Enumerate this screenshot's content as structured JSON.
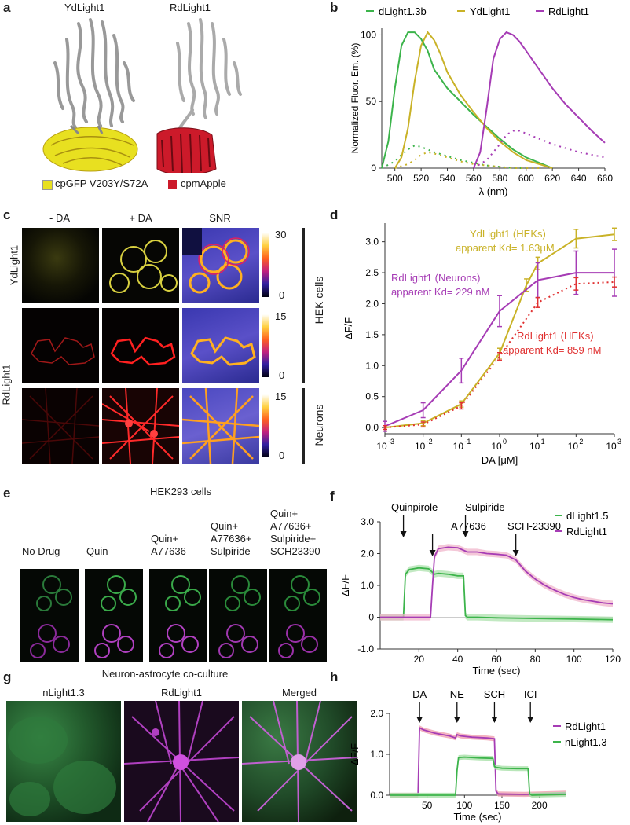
{
  "panels": {
    "a": {
      "letter": "a",
      "left_title": "YdLight1",
      "right_title": "RdLight1",
      "legend_left": "cpGFP V203Y/S72A",
      "legend_right": "cpmApple",
      "colors": {
        "yellow": "#e8e020",
        "red": "#cc1a2a"
      }
    },
    "b": {
      "letter": "b",
      "legend": [
        "dLight1.3b",
        "YdLight1",
        "RdLight1"
      ],
      "ylabel": "Normalized Fluor. Em. (%)",
      "xlabel": "λ (nm)",
      "xticks": [
        "500",
        "520",
        "540",
        "560",
        "580",
        "600",
        "620",
        "640",
        "660"
      ],
      "yticks": [
        "0",
        "50",
        "100"
      ]
    },
    "c": {
      "letter": "c",
      "col_titles": [
        "- DA",
        "+ DA",
        "SNR"
      ],
      "row_label_top": "YdLight1",
      "row_label_bottom": "RdLight1",
      "side_labels": [
        "HEK cells",
        "Neurons"
      ],
      "scale_top": [
        "30",
        "0"
      ],
      "scale_mid": [
        "15",
        "0"
      ],
      "scale_bot": [
        "15",
        "0"
      ]
    },
    "d": {
      "letter": "d",
      "ann_yd1": "YdLight1 (HEKs)",
      "ann_yd2": "apparent Kd= 1.63μM",
      "ann_rn1": "RdLight1 (Neurons)",
      "ann_rn2": "apparent Kd= 229 nM",
      "ann_rh1": "RdLight1 (HEKs)",
      "ann_rh2": "apparent Kd= 859 nM",
      "ylabel": "ΔF/F",
      "xlabel": "DA [μM]",
      "yticks": [
        "0.0",
        "0.5",
        "1.0",
        "1.5",
        "2.0",
        "2.5",
        "3.0"
      ],
      "xticks": [
        "-3",
        "-2",
        "-1",
        "0",
        "1",
        "2",
        "3"
      ]
    },
    "e": {
      "letter": "e",
      "title": "HEK293 cells",
      "cols": [
        [
          "No Drug"
        ],
        [
          "Quin"
        ],
        [
          "Quin+",
          "A77636"
        ],
        [
          "Quin+",
          "A77636+",
          "Sulpiride"
        ],
        [
          "Quin+",
          "A77636+",
          "Sulpiride+",
          "SCH23390"
        ]
      ]
    },
    "f": {
      "letter": "f",
      "drugs": [
        "Quinpirole",
        "A77636",
        "Sulpiride",
        "SCH-23390"
      ],
      "legend": [
        "dLight1.5",
        "RdLight1"
      ],
      "ylabel": "ΔF/F",
      "xlabel": "Time (sec)",
      "yticks": [
        "-1.0",
        "0",
        "1.0",
        "2.0",
        "3.0"
      ],
      "xticks": [
        "20",
        "40",
        "60",
        "80",
        "100",
        "120"
      ]
    },
    "g": {
      "letter": "g",
      "title": "Neuron-astrocyte co-culture",
      "cols": [
        "nLight1.3",
        "RdLight1",
        "Merged"
      ]
    },
    "h": {
      "letter": "h",
      "drugs": [
        "DA",
        "NE",
        "SCH",
        "ICI"
      ],
      "legend": [
        "RdLight1",
        "nLight1.3"
      ],
      "ylabel": "ΔF/F",
      "xlabel": "Time (sec)",
      "yticks": [
        "0.0",
        "1.0",
        "2.0"
      ],
      "xticks": [
        "50",
        "100",
        "150",
        "200"
      ]
    }
  },
  "chart_data": [
    {
      "type": "line",
      "panel": "b",
      "xlabel": "λ (nm)",
      "ylabel": "Normalized Fluor. Em. (%)",
      "xlim": [
        490,
        660
      ],
      "ylim": [
        0,
        105
      ],
      "series": [
        {
          "name": "dLight1.3b",
          "color": "#3cb44b",
          "x": [
            490,
            495,
            500,
            505,
            510,
            515,
            520,
            525,
            530,
            540,
            550,
            560,
            570,
            580,
            590,
            600,
            610,
            620
          ],
          "y": [
            0,
            20,
            60,
            92,
            102,
            102,
            97,
            88,
            74,
            60,
            50,
            40,
            31,
            22,
            14,
            8,
            4,
            0
          ]
        },
        {
          "name": "YdLight1",
          "color": "#c9b227",
          "x": [
            500,
            505,
            510,
            515,
            520,
            525,
            530,
            535,
            540,
            550,
            560,
            570,
            580,
            590,
            600,
            610,
            620
          ],
          "y": [
            0,
            8,
            30,
            65,
            92,
            102,
            96,
            85,
            72,
            55,
            42,
            30,
            20,
            12,
            6,
            3,
            0
          ]
        },
        {
          "name": "RdLight1",
          "color": "#a63cb5",
          "x": [
            560,
            565,
            570,
            575,
            580,
            585,
            590,
            595,
            600,
            610,
            620,
            630,
            640,
            650,
            660
          ],
          "y": [
            0,
            12,
            45,
            82,
            97,
            102,
            100,
            95,
            88,
            74,
            60,
            48,
            38,
            28,
            19
          ]
        },
        {
          "name": "dLight1.3b (dotted)",
          "color": "#3cb44b",
          "x": [
            490,
            500,
            505,
            510,
            515,
            520,
            530,
            540,
            550,
            560,
            570,
            580,
            590,
            600
          ],
          "y": [
            0,
            5,
            10,
            14,
            17,
            16,
            12,
            9,
            6,
            4,
            2,
            1,
            0,
            0
          ]
        },
        {
          "name": "YdLight1 (dotted)",
          "color": "#c9b227",
          "x": [
            500,
            510,
            515,
            520,
            525,
            530,
            540,
            550,
            560,
            570,
            580,
            590,
            600,
            610
          ],
          "y": [
            0,
            3,
            6,
            10,
            12,
            11,
            8,
            5,
            3,
            2,
            1,
            0,
            0,
            0
          ]
        },
        {
          "name": "RdLight1 (dotted)",
          "color": "#a63cb5",
          "x": [
            560,
            570,
            580,
            585,
            590,
            595,
            600,
            610,
            620,
            630,
            640,
            650,
            660
          ],
          "y": [
            0,
            6,
            18,
            25,
            28,
            28,
            26,
            22,
            18,
            15,
            12,
            10,
            8
          ]
        }
      ]
    },
    {
      "type": "line",
      "panel": "d",
      "xlabel": "DA [μM]",
      "ylabel": "ΔF/F",
      "xscale": "log",
      "xlim": [
        -3,
        3
      ],
      "ylim": [
        -0.1,
        3.3
      ],
      "series": [
        {
          "name": "YdLight1 (HEKs)",
          "color": "#c9b227",
          "log_x": [
            -3,
            -2,
            -1,
            0,
            0.7,
            1,
            2,
            3
          ],
          "y": [
            0,
            0.07,
            0.38,
            1.2,
            2.3,
            2.65,
            3.05,
            3.12
          ],
          "err": [
            0.03,
            0.04,
            0.05,
            0.08,
            0.1,
            0.1,
            0.15,
            0.1
          ]
        },
        {
          "name": "RdLight1 (Neurons)",
          "color": "#a63cb5",
          "log_x": [
            -3,
            -2,
            -1,
            0,
            1,
            2,
            3
          ],
          "y": [
            0.02,
            0.28,
            0.92,
            1.88,
            2.38,
            2.5,
            2.5
          ],
          "err": [
            0.08,
            0.12,
            0.2,
            0.25,
            0.28,
            0.35,
            0.38
          ]
        },
        {
          "name": "RdLight1 (HEKs)",
          "color": "#e03030",
          "log_x": [
            -3,
            -2,
            -1,
            0,
            1,
            2,
            3
          ],
          "y": [
            0,
            0.05,
            0.35,
            1.15,
            2.02,
            2.32,
            2.35
          ],
          "err": [
            0.03,
            0.04,
            0.05,
            0.06,
            0.08,
            0.1,
            0.08
          ]
        }
      ]
    },
    {
      "type": "line",
      "panel": "f",
      "xlabel": "Time (sec)",
      "ylabel": "ΔF/F",
      "xlim": [
        0,
        120
      ],
      "ylim": [
        -1,
        3
      ],
      "series": [
        {
          "name": "dLight1.5",
          "color": "#3cb44b",
          "x": [
            0,
            12,
            13,
            15,
            20,
            25,
            28,
            30,
            35,
            40,
            43,
            44,
            45,
            50,
            60,
            80,
            100,
            120
          ],
          "y": [
            0,
            0,
            1.35,
            1.5,
            1.55,
            1.52,
            1.35,
            1.38,
            1.35,
            1.3,
            1.3,
            0.05,
            0,
            0,
            -0.02,
            -0.04,
            -0.06,
            -0.08
          ]
        },
        {
          "name": "RdLight1",
          "color": "#a63cb5",
          "x": [
            0,
            26,
            27,
            28,
            30,
            35,
            40,
            45,
            50,
            55,
            60,
            65,
            70,
            75,
            80,
            85,
            90,
            95,
            100,
            105,
            110,
            115,
            120
          ],
          "y": [
            0,
            0,
            1.0,
            1.9,
            2.15,
            2.2,
            2.18,
            2.05,
            2.05,
            2.0,
            1.98,
            1.95,
            1.8,
            1.45,
            1.2,
            1.0,
            0.85,
            0.72,
            0.62,
            0.55,
            0.5,
            0.45,
            0.42
          ]
        }
      ]
    },
    {
      "type": "line",
      "panel": "h",
      "xlabel": "Time (sec)",
      "ylabel": "ΔF/F",
      "xlim": [
        0,
        235
      ],
      "ylim": [
        0,
        2
      ],
      "series": [
        {
          "name": "RdLight1",
          "color": "#a63cb5",
          "x": [
            0,
            38,
            40,
            45,
            60,
            80,
            88,
            90,
            95,
            110,
            130,
            140,
            142,
            145,
            180,
            200,
            235
          ],
          "y": [
            0,
            0,
            1.65,
            1.6,
            1.52,
            1.45,
            1.4,
            1.48,
            1.45,
            1.42,
            1.4,
            1.38,
            0.1,
            0.03,
            0.02,
            0.03,
            0.05
          ]
        },
        {
          "name": "nLight1.3",
          "color": "#3cb44b",
          "x": [
            0,
            88,
            90,
            92,
            100,
            120,
            138,
            140,
            142,
            150,
            170,
            185,
            187,
            190,
            210,
            235
          ],
          "y": [
            0,
            0,
            0.6,
            0.92,
            0.93,
            0.91,
            0.9,
            0.7,
            0.68,
            0.66,
            0.65,
            0.65,
            0.03,
            0,
            0.01,
            0.02
          ]
        }
      ]
    }
  ]
}
